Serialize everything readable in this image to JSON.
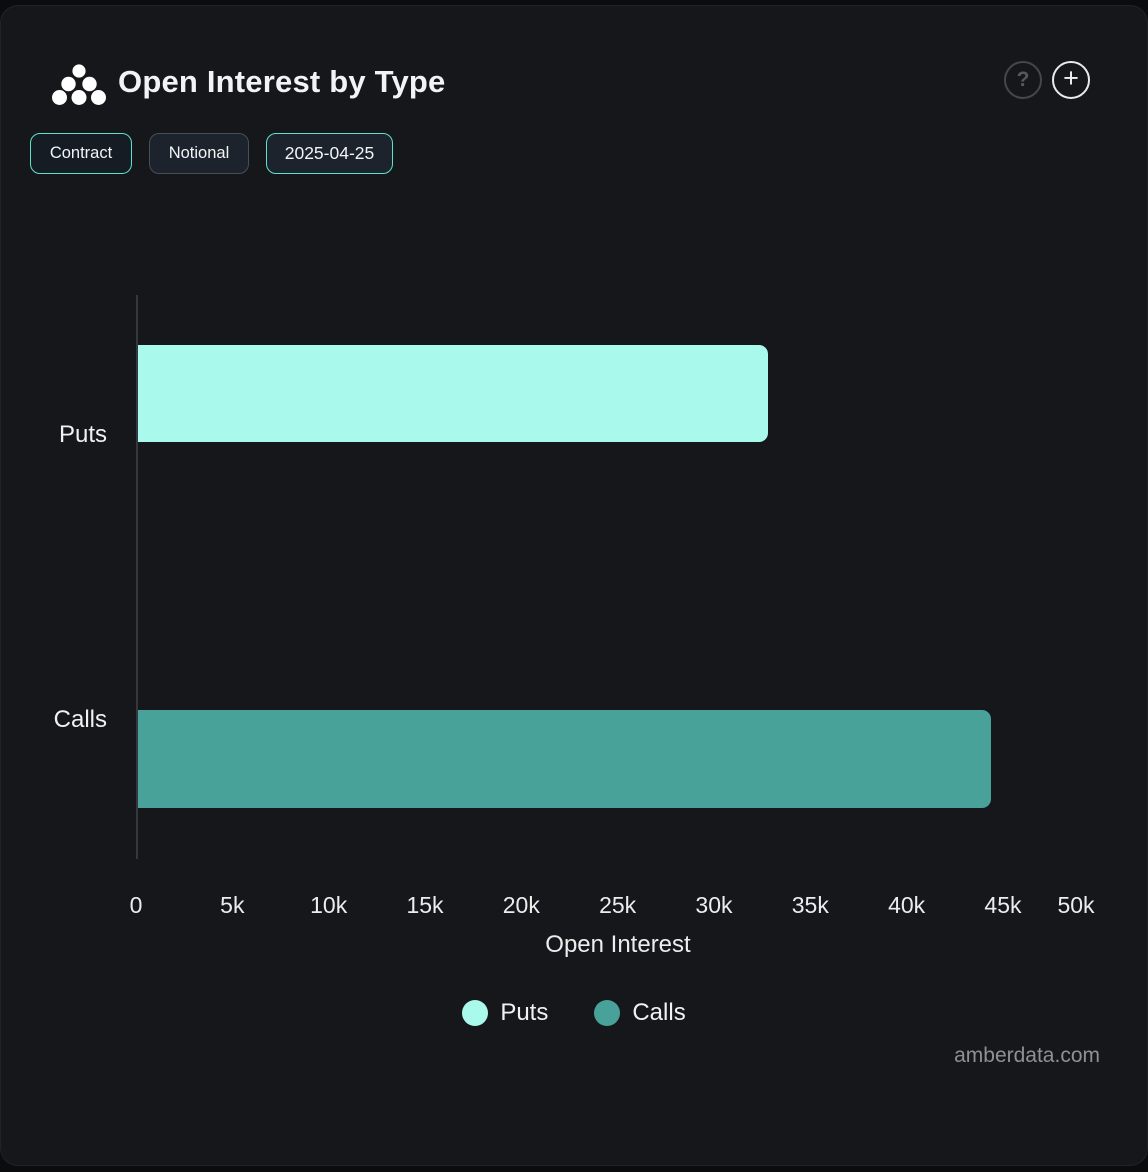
{
  "header": {
    "title": "Open Interest by Type",
    "icons": {
      "help": "?",
      "add": "+"
    }
  },
  "toolbar": {
    "buttons": [
      {
        "label": "Contract",
        "active": true
      },
      {
        "label": "Notional",
        "active": false
      },
      {
        "label": "2025-04-25",
        "active": true
      }
    ]
  },
  "chart_data": {
    "type": "bar",
    "orientation": "horizontal",
    "title": "Open Interest by Type",
    "categories": [
      "Puts",
      "Calls"
    ],
    "series": [
      {
        "name": "Puts",
        "color": "#a9f9ec",
        "values": [
          32700,
          0
        ]
      },
      {
        "name": "Calls",
        "color": "#48a29a",
        "values": [
          0,
          44300
        ]
      }
    ],
    "xlabel": "Open Interest",
    "xlim": [
      0,
      50000
    ],
    "x_ticks": [
      "0",
      "5k",
      "10k",
      "15k",
      "20k",
      "25k",
      "30k",
      "35k",
      "40k",
      "45k",
      "50k"
    ],
    "grid": false,
    "legend": [
      "Puts",
      "Calls"
    ],
    "legend_position": "bottom"
  },
  "footer": {
    "watermark": "amberdata.com"
  },
  "colors": {
    "panel_bg": "#16171a",
    "outer_bg": "#0b0c0e",
    "accent_teal": "#5be3c9",
    "puts_bar": "#a9f9ec",
    "calls_bar": "#48a29a",
    "axis_line": "#34373d",
    "text": "#f0f1f2",
    "watermark": "#8e9093"
  }
}
